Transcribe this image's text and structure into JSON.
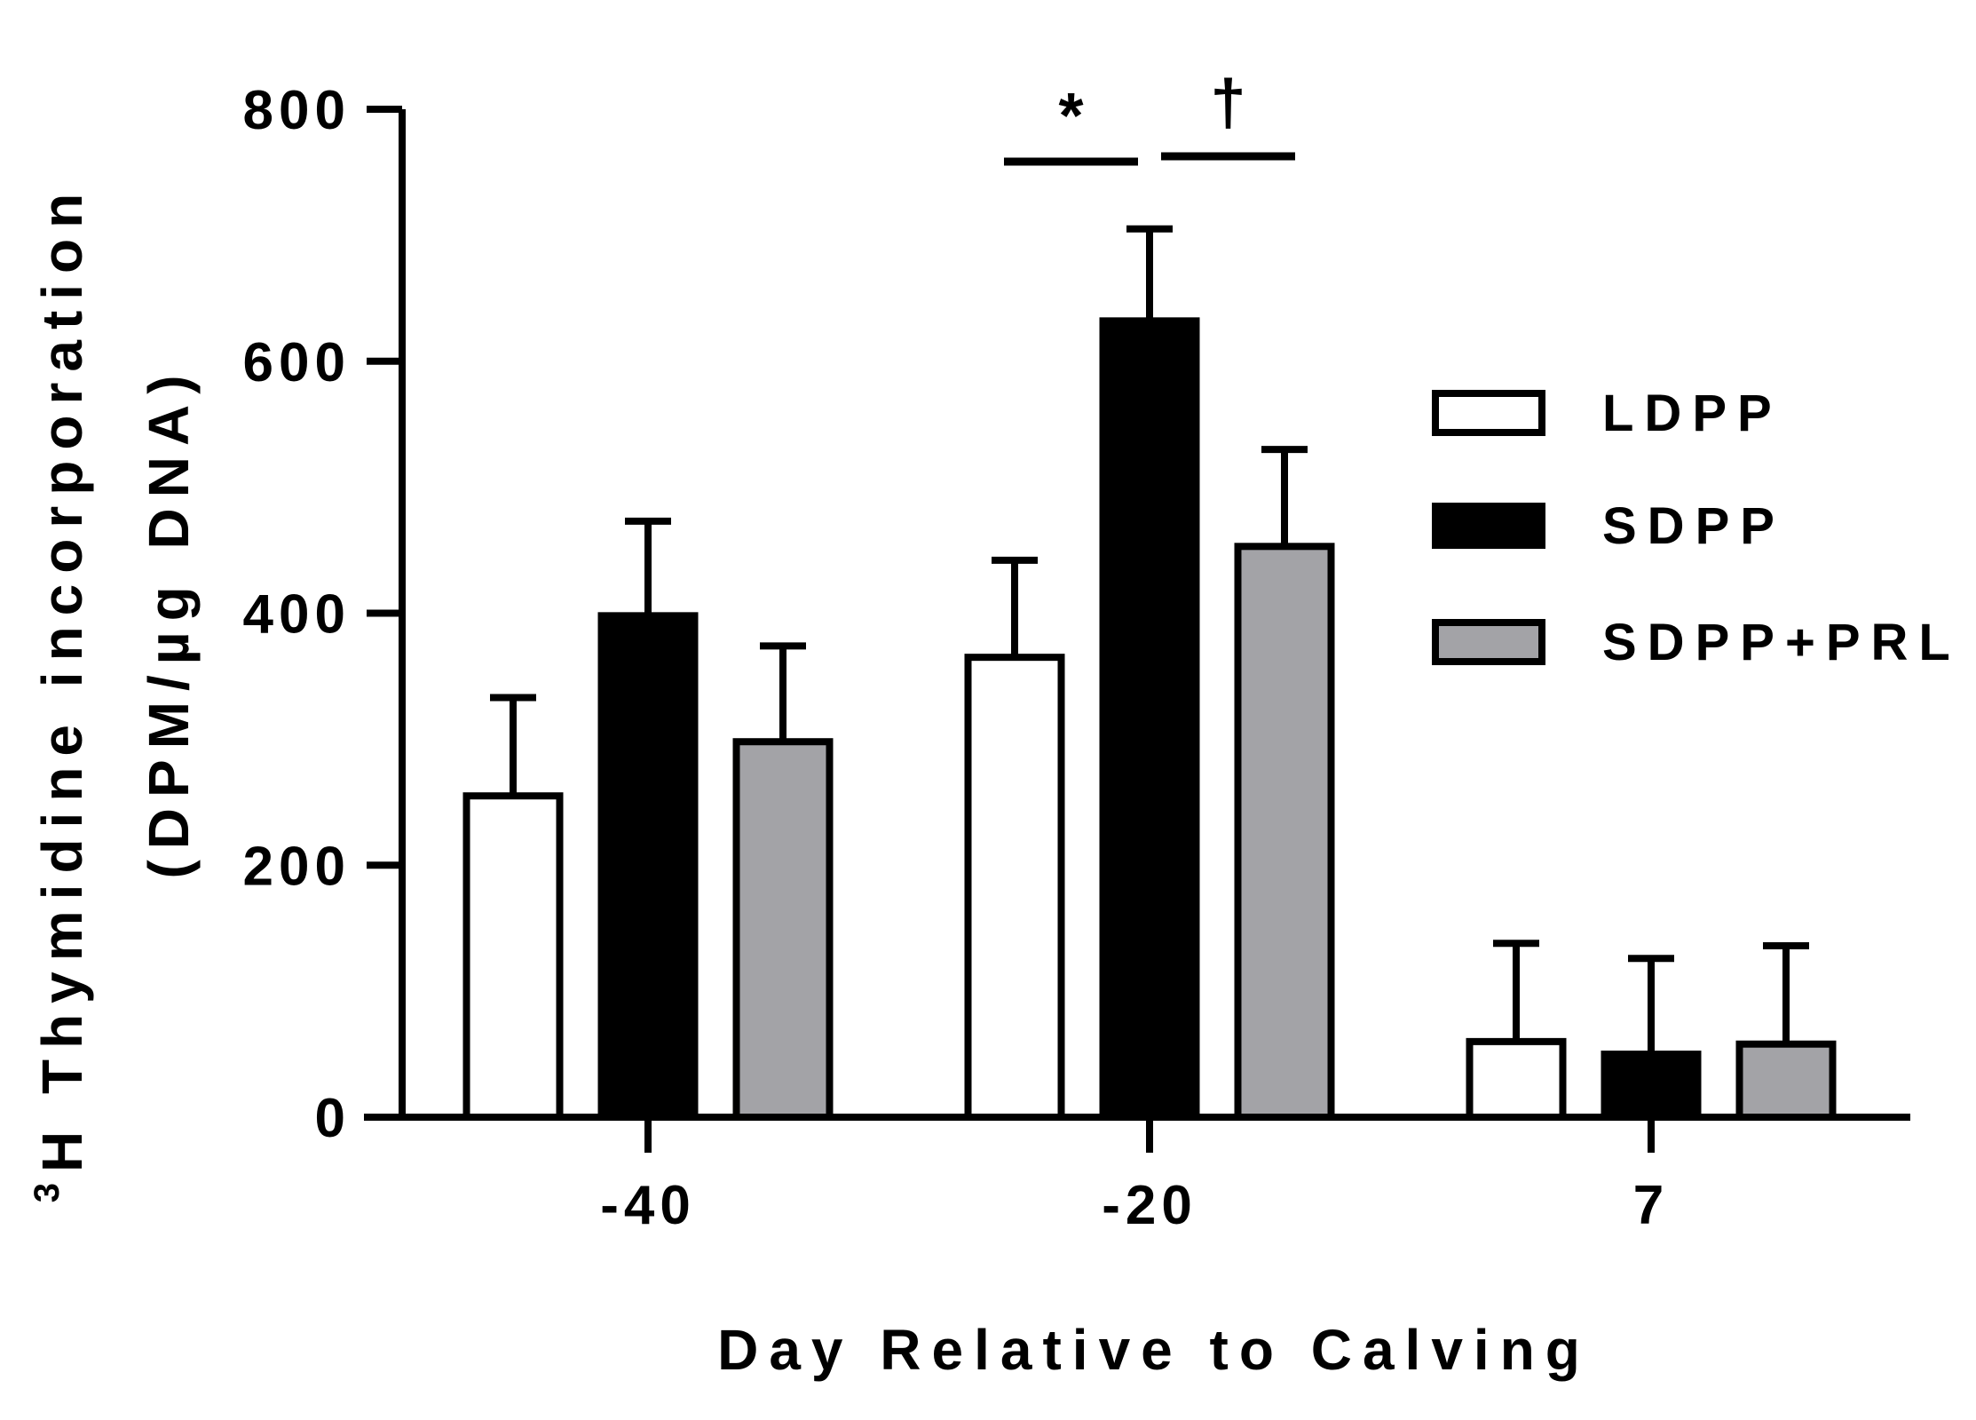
{
  "chart_data": {
    "type": "bar",
    "title": "",
    "xlabel": "Day Relative to Calving",
    "ylabel_line1": "Thymidine incorporation",
    "ylabel_superscript": "3",
    "ylabel_prefix": "H",
    "ylabel_line2": "(DPM/µg DNA)",
    "ylim": [
      0,
      800
    ],
    "yticks": [
      "0",
      "200",
      "400",
      "600",
      "800"
    ],
    "categories": [
      "-40",
      "-20",
      "7"
    ],
    "series": [
      {
        "name": "LDPP",
        "color": "#ffffff",
        "values": [
          255,
          365,
          60
        ],
        "errors": [
          78,
          77,
          78
        ]
      },
      {
        "name": "SDPP",
        "color": "#000000",
        "values": [
          398,
          632,
          50
        ],
        "errors": [
          75,
          73,
          76
        ]
      },
      {
        "name": "SDPP+PRL",
        "color": "#a3a3a7",
        "values": [
          298,
          453,
          58
        ],
        "errors": [
          76,
          77,
          78
        ]
      }
    ],
    "annotations": [
      {
        "symbol": "*",
        "category": "-20",
        "from_series": "LDPP",
        "to_series": "SDPP"
      },
      {
        "symbol": "†",
        "category": "-20",
        "from_series": "SDPP",
        "to_series": "SDPP+PRL"
      }
    ],
    "legend_position": "right"
  }
}
